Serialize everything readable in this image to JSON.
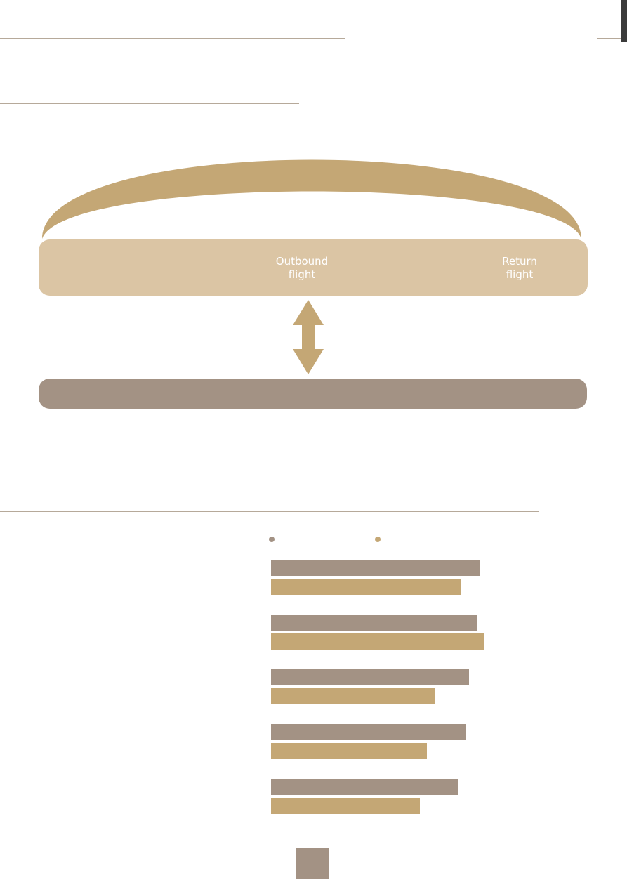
{
  "diagram": {
    "arc_color": "#c4a775",
    "flight_band": {
      "color": "#dbc5a4",
      "outbound_label": "Outbound\nflight",
      "return_label": "Return\nflight"
    },
    "ground_band": {
      "color": "#a39284"
    },
    "arrow_color": "#c4a775"
  },
  "chart_data": {
    "type": "bar",
    "orientation": "horizontal",
    "categories": [
      "",
      "",
      "",
      "",
      ""
    ],
    "series": [
      {
        "color": "#a39284",
        "values": [
          298,
          293,
          282,
          277,
          266
        ]
      },
      {
        "color": "#c4a775",
        "values": [
          271,
          304,
          233,
          222,
          212
        ]
      }
    ],
    "xlim": [
      0,
      310
    ],
    "grid": false,
    "legend": "top"
  },
  "footer": {
    "tab_color": "#a39284"
  }
}
